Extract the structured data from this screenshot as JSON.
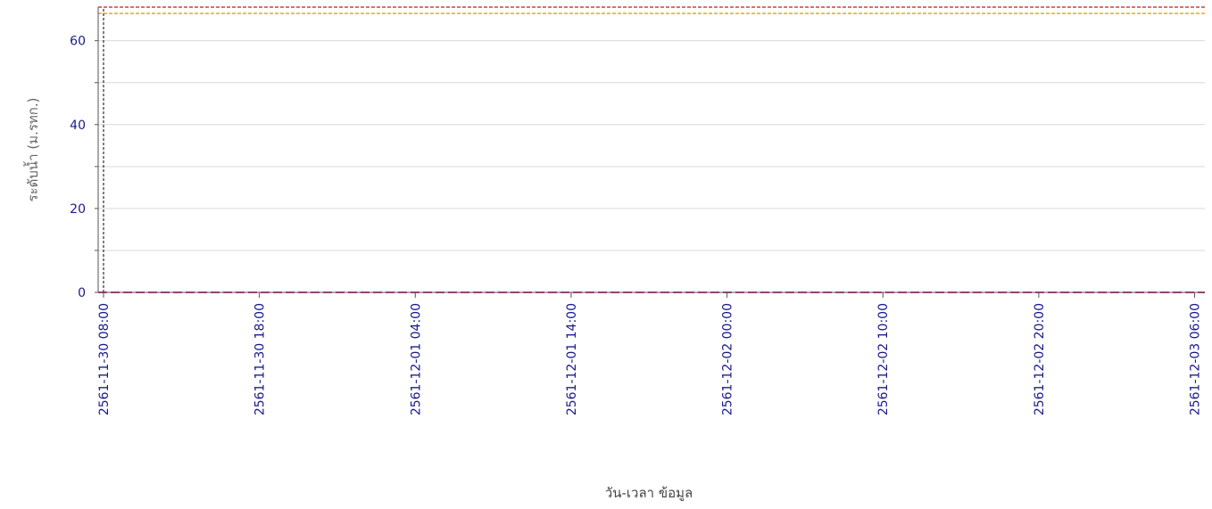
{
  "chart_data": {
    "type": "line",
    "title": "",
    "xlabel": "วัน-เวลา ข้อมูล",
    "ylabel": "ระดับน้ำ (ม.รทก.)",
    "ylim": [
      0,
      68
    ],
    "xlim": [
      "2561-11-30 08:00",
      "2561-12-03 07:00"
    ],
    "y_ticks": [
      0,
      20,
      40,
      60
    ],
    "x_ticks": [
      "2561-11-30 08:00",
      "2561-11-30 18:00",
      "2561-12-01 04:00",
      "2561-12-01 14:00",
      "2561-12-02 00:00",
      "2561-12-02 10:00",
      "2561-12-02 20:00",
      "2561-12-03 06:00"
    ],
    "grid": true,
    "reference_lines": [
      {
        "orientation": "horizontal",
        "value": 68,
        "color": "#b22222",
        "style": "dashed"
      },
      {
        "orientation": "horizontal",
        "value": 66.5,
        "color": "#e8a000",
        "style": "dashed"
      },
      {
        "orientation": "horizontal",
        "value": 0,
        "color": "#cc3399",
        "style": "dashed"
      },
      {
        "orientation": "vertical",
        "value": "2561-11-30 08:00",
        "color": "#000000",
        "style": "dashed"
      }
    ],
    "colors": {
      "axis_text": "#1a1a8c",
      "grid": "#d9d9d9",
      "axis_line": "#555555"
    }
  }
}
